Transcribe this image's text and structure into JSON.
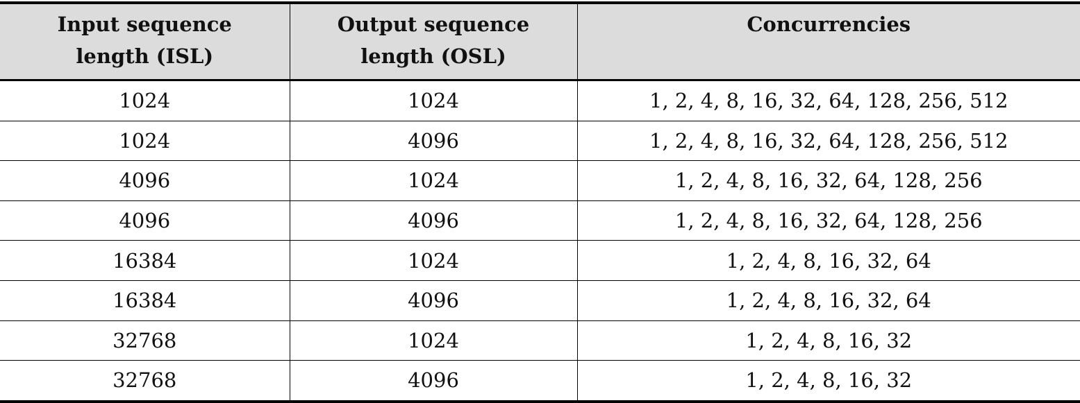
{
  "table": {
    "headers": [
      "Input sequence length (ISL)",
      "Output sequence length (OSL)",
      "Concurrencies"
    ],
    "rows": [
      [
        "1024",
        "1024",
        "1, 2, 4, 8, 16, 32, 64, 128, 256, 512"
      ],
      [
        "1024",
        "4096",
        "1, 2, 4, 8, 16, 32, 64, 128, 256, 512"
      ],
      [
        "4096",
        "1024",
        "1, 2, 4, 8, 16, 32, 64, 128, 256"
      ],
      [
        "4096",
        "4096",
        "1, 2, 4, 8, 16, 32, 64, 128, 256"
      ],
      [
        "16384",
        "1024",
        "1, 2, 4, 8, 16, 32, 64"
      ],
      [
        "16384",
        "4096",
        "1, 2, 4, 8, 16, 32, 64"
      ],
      [
        "32768",
        "1024",
        "1, 2, 4, 8, 16, 32"
      ],
      [
        "32768",
        "4096",
        "1, 2, 4, 8, 16, 32"
      ]
    ]
  }
}
